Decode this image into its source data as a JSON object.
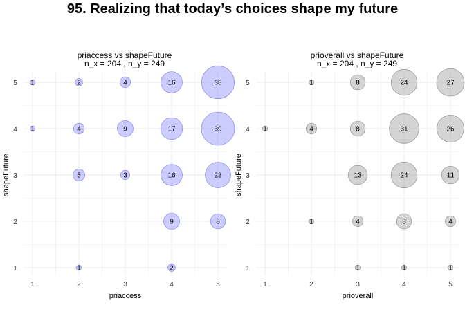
{
  "figure": {
    "title": "95. Realizing that today’s choices shape my future"
  },
  "colors": {
    "panel1_fill": "#9999ff",
    "panel1_stroke": "#7777dd",
    "panel2_fill": "#aaaaaa",
    "panel2_stroke": "#888888",
    "grid": "#ebebeb",
    "text": "#000000",
    "tick": "#333333"
  },
  "chart_data": [
    {
      "type": "scatter",
      "title": "priaccess vs shapeFuture",
      "subtitle": "n_x = 204 , n_y = 249",
      "xlabel": "priaccess",
      "ylabel": "shapeFuture",
      "x_ticks": [
        "1",
        "2",
        "3",
        "4",
        "5"
      ],
      "y_ticks": [
        "1",
        "2",
        "3",
        "4",
        "5"
      ],
      "xlim": [
        1,
        5
      ],
      "ylim": [
        1,
        5
      ],
      "grid": true,
      "points": [
        {
          "x": 1,
          "y": 5,
          "count": 1
        },
        {
          "x": 2,
          "y": 5,
          "count": 2
        },
        {
          "x": 3,
          "y": 5,
          "count": 4
        },
        {
          "x": 4,
          "y": 5,
          "count": 16
        },
        {
          "x": 5,
          "y": 5,
          "count": 38
        },
        {
          "x": 1,
          "y": 4,
          "count": 1
        },
        {
          "x": 2,
          "y": 4,
          "count": 4
        },
        {
          "x": 3,
          "y": 4,
          "count": 9
        },
        {
          "x": 4,
          "y": 4,
          "count": 17
        },
        {
          "x": 5,
          "y": 4,
          "count": 39
        },
        {
          "x": 2,
          "y": 3,
          "count": 5
        },
        {
          "x": 3,
          "y": 3,
          "count": 3
        },
        {
          "x": 4,
          "y": 3,
          "count": 16
        },
        {
          "x": 5,
          "y": 3,
          "count": 23
        },
        {
          "x": 4,
          "y": 2,
          "count": 9
        },
        {
          "x": 5,
          "y": 2,
          "count": 8
        },
        {
          "x": 2,
          "y": 1,
          "count": 1
        },
        {
          "x": 4,
          "y": 1,
          "count": 2
        }
      ]
    },
    {
      "type": "scatter",
      "title": "prioverall vs shapeFuture",
      "subtitle": "n_x = 204 , n_y = 249",
      "xlabel": "prioverall",
      "ylabel": "shapeFuture",
      "x_ticks": [
        "1",
        "2",
        "3",
        "4",
        "5"
      ],
      "y_ticks": [
        "1",
        "2",
        "3",
        "4",
        "5"
      ],
      "xlim": [
        1,
        5
      ],
      "ylim": [
        1,
        5
      ],
      "grid": true,
      "points": [
        {
          "x": 2,
          "y": 5,
          "count": 1
        },
        {
          "x": 3,
          "y": 5,
          "count": 8
        },
        {
          "x": 4,
          "y": 5,
          "count": 24
        },
        {
          "x": 5,
          "y": 5,
          "count": 27
        },
        {
          "x": 1,
          "y": 4,
          "count": 1
        },
        {
          "x": 2,
          "y": 4,
          "count": 4
        },
        {
          "x": 3,
          "y": 4,
          "count": 8
        },
        {
          "x": 4,
          "y": 4,
          "count": 31
        },
        {
          "x": 5,
          "y": 4,
          "count": 26
        },
        {
          "x": 3,
          "y": 3,
          "count": 13
        },
        {
          "x": 4,
          "y": 3,
          "count": 24
        },
        {
          "x": 5,
          "y": 3,
          "count": 11
        },
        {
          "x": 2,
          "y": 2,
          "count": 1
        },
        {
          "x": 3,
          "y": 2,
          "count": 4
        },
        {
          "x": 4,
          "y": 2,
          "count": 8
        },
        {
          "x": 5,
          "y": 2,
          "count": 4
        },
        {
          "x": 3,
          "y": 1,
          "count": 1
        },
        {
          "x": 4,
          "y": 1,
          "count": 1
        },
        {
          "x": 5,
          "y": 1,
          "count": 1
        }
      ]
    }
  ]
}
